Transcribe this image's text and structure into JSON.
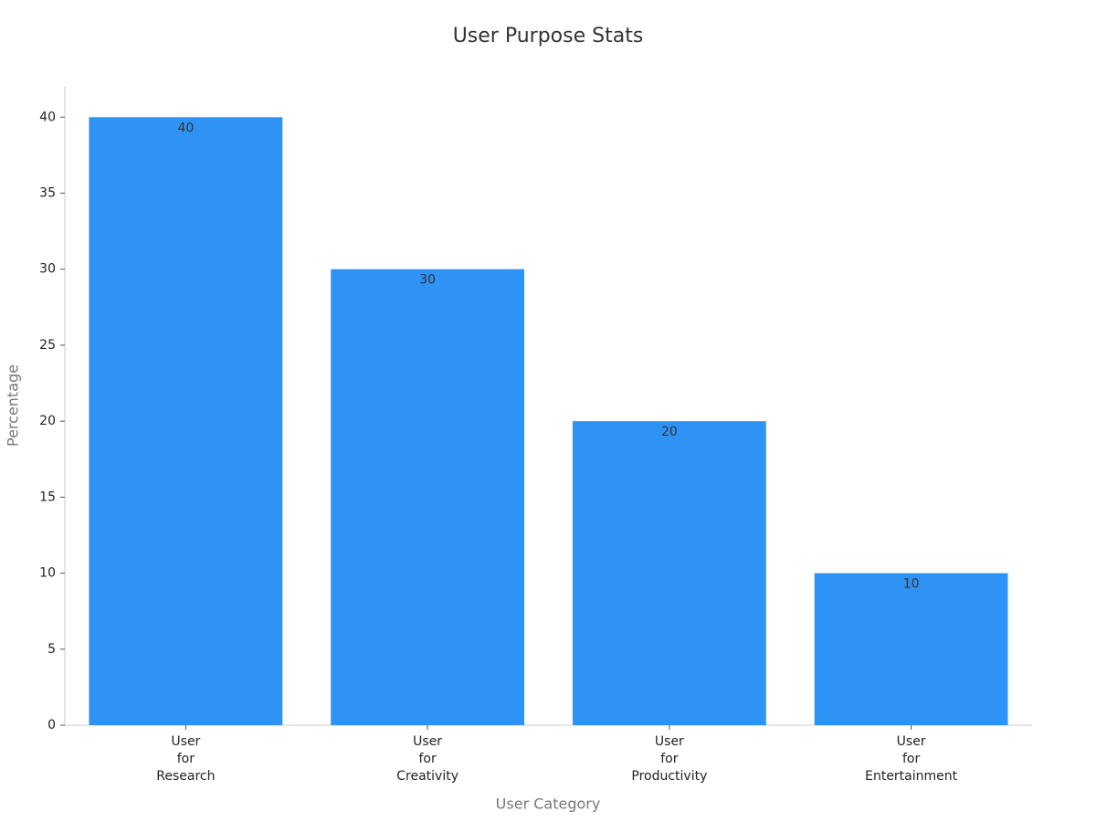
{
  "chart_data": {
    "type": "bar",
    "title": "User Purpose Stats",
    "x_label": "User Category",
    "y_label": "Percentage",
    "categories": [
      "User\nfor\nResearch",
      "User\nfor\nCreativity",
      "User\nfor\nProductivity",
      "User\nfor\nEntertainment"
    ],
    "values": [
      40,
      30,
      20,
      10
    ],
    "color": "#2f92f5",
    "ylim": [
      0,
      42
    ],
    "yticks": [
      0,
      5,
      10,
      15,
      20,
      25,
      30,
      35,
      40
    ],
    "grid": false
  }
}
